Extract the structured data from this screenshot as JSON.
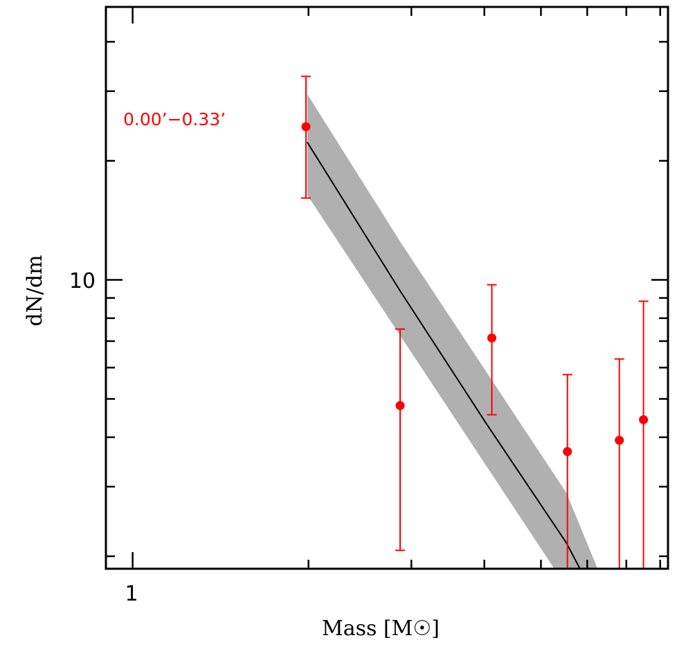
{
  "chart_data": {
    "type": "scatter",
    "title": "",
    "xlabel": "Mass [M☉]",
    "xlabel_text": "Mass [M",
    "xlabel_unit_symbol": "☉",
    "ylabel": "dN/dm",
    "xscale": "log",
    "yscale": "log",
    "xlim": [
      0.9,
      8.25
    ],
    "ylim": [
      1.86,
      49
    ],
    "x_tick_labels": [
      {
        "value": 1,
        "label": "1"
      }
    ],
    "y_tick_labels": [
      {
        "value": 10,
        "label": "10"
      }
    ],
    "x_minor_ticks": [
      2,
      3,
      4,
      5,
      6,
      7,
      8
    ],
    "y_minor_ticks": [
      2,
      3,
      4,
      5,
      6,
      7,
      8,
      9,
      20,
      30,
      40
    ],
    "grid": false,
    "annotation": {
      "text": "0.00’−0.33’",
      "color": "#ff0000"
    },
    "points": {
      "color": "#ff0000",
      "data": [
        {
          "x": 1.98,
          "y": 24.4,
          "y_high": 32.7,
          "y_low": 16.1
        },
        {
          "x": 2.87,
          "y": 4.81,
          "y_high": 7.51,
          "y_low": 2.07
        },
        {
          "x": 4.12,
          "y": 7.13,
          "y_high": 9.72,
          "y_low": 4.56
        },
        {
          "x": 5.55,
          "y": 3.68,
          "y_high": 5.76,
          "y_low": 1.0
        },
        {
          "x": 6.81,
          "y": 3.93,
          "y_high": 6.31,
          "y_low": 1.0
        },
        {
          "x": 7.49,
          "y": 4.43,
          "y_high": 8.83,
          "y_low": 1.0
        }
      ]
    },
    "model": {
      "line_color": "#000000",
      "band_color": "#b0b0b0",
      "line": [
        [
          1.99,
          22.3
        ],
        [
          2.87,
          9.38
        ],
        [
          4.04,
          4.31
        ],
        [
          5.53,
          2.16
        ],
        [
          5.83,
          1.86
        ]
      ],
      "band_upper": [
        [
          1.99,
          29.5
        ],
        [
          2.88,
          12.4
        ],
        [
          5.53,
          2.89
        ],
        [
          6.25,
          1.86
        ]
      ],
      "band_lower": [
        [
          1.99,
          16.4
        ],
        [
          5.27,
          1.86
        ]
      ]
    }
  }
}
